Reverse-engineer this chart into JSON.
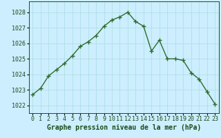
{
  "x": [
    0,
    1,
    2,
    3,
    4,
    5,
    6,
    7,
    8,
    9,
    10,
    11,
    12,
    13,
    14,
    15,
    16,
    17,
    18,
    19,
    20,
    21,
    22,
    23
  ],
  "y": [
    1022.7,
    1023.1,
    1023.9,
    1024.3,
    1024.7,
    1025.2,
    1025.8,
    1026.1,
    1026.5,
    1027.1,
    1027.5,
    1027.7,
    1028.0,
    1027.4,
    1027.1,
    1025.5,
    1026.2,
    1025.0,
    1025.0,
    1024.9,
    1024.1,
    1023.7,
    1022.9,
    1022.1
  ],
  "line_color": "#2d6a2d",
  "marker": "+",
  "marker_size": 4,
  "line_width": 1.0,
  "bg_color": "#cceeff",
  "grid_color": "#aadddd",
  "ylabel_ticks": [
    1022,
    1023,
    1024,
    1025,
    1026,
    1027,
    1028
  ],
  "xlabel": "Graphe pression niveau de la mer (hPa)",
  "xlabel_color": "#1a4a1a",
  "xlabel_fontsize": 7,
  "tick_color": "#1a4a1a",
  "tick_fontsize": 6,
  "ylim": [
    1021.5,
    1028.7
  ],
  "xlim": [
    -0.5,
    23.5
  ]
}
